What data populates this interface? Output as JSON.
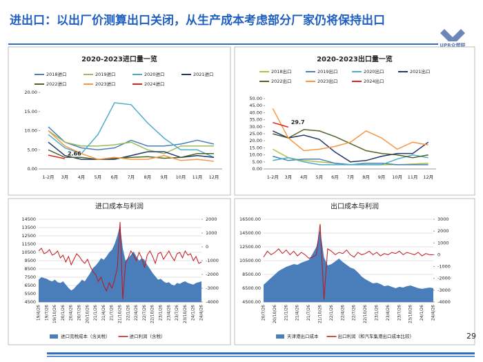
{
  "header": {
    "title": "进出口：以出厂价测算出口关闭，从生产成本考虑部分厂家仍将保持出口",
    "logo": "UPR众塑联"
  },
  "page_number": "29",
  "chart_data": [
    {
      "type": "line",
      "title": "2020-2023进口量一览",
      "categories": [
        "1-2月",
        "3月",
        "4月",
        "5月",
        "6月",
        "7月",
        "8月",
        "9月",
        "10月",
        "11月",
        "12月"
      ],
      "ylim": [
        0,
        20
      ],
      "yticks": [
        {
          "value": 0,
          "label": "0.00"
        },
        {
          "value": 5,
          "label": "5.00"
        },
        {
          "value": 10,
          "label": "10.00"
        },
        {
          "value": 15,
          "label": "15.00"
        },
        {
          "value": 20,
          "label": "20.00"
        }
      ],
      "grid": false,
      "legend": "top",
      "series": [
        {
          "name": "2018进口",
          "color": "#4a7ebb",
          "values": [
            11,
            7,
            5.5,
            5,
            5.5,
            7.5,
            6,
            6,
            6.5,
            7.5,
            6.5
          ]
        },
        {
          "name": "2019进口",
          "color": "#9bbb59",
          "values": [
            10,
            7,
            6,
            6,
            6.3,
            7,
            5,
            4,
            6,
            6,
            6
          ]
        },
        {
          "name": "2020进口",
          "color": "#4bacc6",
          "values": [
            9,
            5.5,
            4,
            9,
            17.3,
            16.8,
            12,
            8,
            5,
            5,
            3
          ]
        },
        {
          "name": "2021进口",
          "color": "#1f3864",
          "values": [
            7,
            3.5,
            2.5,
            2.5,
            2.5,
            3.5,
            4.5,
            4.5,
            3,
            3.5,
            3
          ]
        },
        {
          "name": "2022进口",
          "color": "#4f6228",
          "values": [
            5,
            3,
            3,
            2.5,
            2.8,
            3,
            3.2,
            2.8,
            3,
            4,
            4
          ]
        },
        {
          "name": "2023进口",
          "color": "#f79646",
          "values": [
            10,
            6,
            4,
            2.5,
            3,
            2.5,
            2.5,
            3.5,
            2.2,
            2.5,
            2
          ]
        },
        {
          "name": "2024进口",
          "color": "#e0201b",
          "values": [
            3.6,
            2.66,
            null,
            null,
            null,
            null,
            null,
            null,
            null,
            null,
            null
          ],
          "value_labels": [
            null,
            "2.66",
            null,
            null,
            null,
            null,
            null,
            null,
            null,
            null,
            null
          ]
        }
      ]
    },
    {
      "type": "line",
      "title": "2020-2023出口量一览",
      "categories": [
        "1-2月",
        "3月",
        "4月",
        "5月",
        "6月",
        "7月",
        "8月",
        "9月",
        "10月",
        "11月",
        "12月"
      ],
      "ylim": [
        0,
        50
      ],
      "yticks": [
        {
          "value": 0,
          "label": "0.00"
        },
        {
          "value": 5,
          "label": "5.00"
        },
        {
          "value": 10,
          "label": "10.00"
        },
        {
          "value": 15,
          "label": "15.00"
        },
        {
          "value": 20,
          "label": "20.00"
        },
        {
          "value": 25,
          "label": "25.00"
        },
        {
          "value": 30,
          "label": "30.00"
        },
        {
          "value": 35,
          "label": "35.00"
        },
        {
          "value": 40,
          "label": "40.00"
        },
        {
          "value": 45,
          "label": "45.00"
        },
        {
          "value": 50,
          "label": "50.00"
        }
      ],
      "grid": false,
      "legend": "top",
      "series": [
        {
          "name": "2018出口",
          "color": "#a9c23f",
          "values": [
            14,
            8,
            6,
            5,
            4,
            3,
            3,
            3,
            3,
            3.5,
            4
          ]
        },
        {
          "name": "2019出口",
          "color": "#4a7ebb",
          "values": [
            9,
            6,
            7,
            7,
            4,
            3,
            4,
            4,
            3,
            3,
            3
          ]
        },
        {
          "name": "2020出口",
          "color": "#4bacc6",
          "values": [
            6,
            8,
            5,
            3,
            3,
            3,
            3,
            3,
            7,
            10,
            8
          ]
        },
        {
          "name": "2021出口",
          "color": "#1f3864",
          "values": [
            27,
            22,
            24,
            21,
            12,
            5,
            6,
            9,
            11,
            11,
            19
          ]
        },
        {
          "name": "2022出口",
          "color": "#4f6228",
          "values": [
            25,
            22,
            28,
            27,
            23,
            18,
            13,
            11,
            10,
            8,
            10
          ]
        },
        {
          "name": "2023出口",
          "color": "#f79646",
          "values": [
            43,
            22,
            13,
            14,
            16,
            19,
            27,
            22,
            14,
            19,
            17
          ]
        },
        {
          "name": "2024出口",
          "color": "#e0201b",
          "values": [
            33,
            29.7,
            null,
            null,
            null,
            null,
            null,
            null,
            null,
            null,
            null
          ],
          "value_labels": [
            null,
            "29.7",
            null,
            null,
            null,
            null,
            null,
            null,
            null,
            null,
            null
          ]
        }
      ]
    },
    {
      "type": "combo",
      "title": "进口成本与利润",
      "categories": [
        "19/4/26",
        null,
        null,
        "19/7/26",
        null,
        null,
        "19/10/26",
        null,
        null,
        "20/1/26",
        null,
        null,
        "20/4/26",
        null,
        null,
        "20/7/26",
        null,
        null,
        "20/10/26",
        null,
        null,
        "21/1/26",
        null,
        null,
        "21/4/26",
        null,
        null,
        "21/7/26",
        null,
        null,
        "21/10/26",
        null,
        null,
        "22/1/26",
        null,
        null,
        "22/4/26",
        null,
        null,
        "22/7/26",
        null,
        null,
        "22/10/26",
        null,
        null,
        "23/1/26",
        null,
        null,
        "23/4/26",
        null,
        null,
        "23/7/26",
        null,
        null,
        "23/10/26",
        null,
        null,
        "24/1/26",
        null,
        null,
        "24/4/26"
      ],
      "ylim": [
        4500,
        14500
      ],
      "yticks": [
        4500,
        5500,
        6500,
        7500,
        8500,
        9500,
        10500,
        11500,
        12500,
        13500,
        14500
      ],
      "y2lim": [
        -4000,
        2000
      ],
      "y2ticks": [
        -4000,
        -3000,
        -2000,
        -1000,
        0,
        1000,
        2000
      ],
      "grid": true,
      "legend": "bottom",
      "series": [
        {
          "name": "进口完税成本（含关税）",
          "color": "#4a7ebb",
          "style": "area",
          "values": [
            7200,
            7500,
            7400,
            7300,
            7100,
            7000,
            7200,
            6900,
            6800,
            7000,
            6600,
            6200,
            5900,
            6100,
            6500,
            6800,
            7200,
            7000,
            7500,
            8000,
            8600,
            8900,
            9300,
            9800,
            9600,
            10000,
            10500,
            10800,
            11500,
            12500,
            13800,
            11000,
            9500,
            9800,
            10200,
            10600,
            10000,
            9500,
            9800,
            9600,
            9000,
            8500,
            8000,
            7600,
            7200,
            7300,
            7000,
            6800,
            6900,
            6600,
            6500,
            6800,
            6700,
            6900,
            7000,
            6800,
            6700,
            6600,
            6800,
            6900,
            7000
          ]
        },
        {
          "name": "进口利润（含税）",
          "color": "#c0141b",
          "style": "line",
          "axis": "y2",
          "values": [
            -300,
            -100,
            -500,
            -400,
            -200,
            -600,
            -500,
            -300,
            -800,
            -600,
            -1100,
            -700,
            -1300,
            -900,
            -500,
            -700,
            -1000,
            -1200,
            -900,
            -1400,
            -1800,
            -2000,
            -2500,
            -2200,
            -2800,
            -3200,
            -2600,
            -3000,
            -2400,
            -1500,
            1800,
            -3800,
            -1200,
            -800,
            -300,
            -600,
            -1000,
            -400,
            -800,
            -1500,
            -600,
            -300,
            -700,
            -1200,
            -500,
            -400,
            -900,
            -600,
            -300,
            -700,
            -1000,
            -500,
            -400,
            -800,
            -300,
            -600,
            -500,
            -1000,
            -700,
            -1200,
            -1100
          ]
        }
      ]
    },
    {
      "type": "combo",
      "title": "出口成本与利润",
      "categories": [
        "20/7/26",
        null,
        null,
        "20/10/26",
        null,
        null,
        "21/1/26",
        null,
        null,
        "21/4/26",
        null,
        null,
        "21/7/26",
        null,
        null,
        "21/10/26",
        null,
        null,
        "22/1/26",
        null,
        null,
        "22/4/26",
        null,
        null,
        "22/7/26",
        null,
        null,
        "22/10/26",
        null,
        null,
        "23/1/26",
        null,
        null,
        "23/4/26",
        null,
        null,
        "23/7/26",
        null,
        null,
        "23/10/26",
        null,
        null,
        "24/1/26",
        null,
        null,
        "24/4/26"
      ],
      "ylim": [
        4500,
        16500
      ],
      "yticks": [
        {
          "value": 4500,
          "label": "4500.00"
        },
        {
          "value": 6500,
          "label": "6500.00"
        },
        {
          "value": 8500,
          "label": "8500.00"
        },
        {
          "value": 10500,
          "label": "10500.00"
        },
        {
          "value": 12500,
          "label": "12500.00"
        },
        {
          "value": 14500,
          "label": "14500.00"
        },
        {
          "value": 16500,
          "label": "16500.00"
        }
      ],
      "y2lim": [
        -4000,
        3000
      ],
      "y2ticks": [
        -4000,
        -3000,
        -2000,
        -1000,
        0,
        1000,
        2000,
        3000
      ],
      "grid": true,
      "legend": "bottom",
      "series": [
        {
          "name": "天津港出口成本",
          "color": "#4a7ebb",
          "style": "area",
          "values": [
            7000,
            7500,
            8000,
            8500,
            9000,
            9300,
            9600,
            9800,
            10000,
            9900,
            10200,
            10400,
            10600,
            11500,
            12500,
            15000,
            11000,
            9800,
            10000,
            10400,
            10800,
            10300,
            9900,
            9500,
            9300,
            8800,
            8200,
            7800,
            7500,
            7200,
            7300,
            7100,
            6800,
            6900,
            6700,
            6500,
            6700,
            6600,
            6800,
            6900,
            6700,
            6500,
            6400,
            6500,
            6600,
            6500
          ]
        },
        {
          "name": "出口利润（和汽车集港出口成本比较）",
          "color": "#c0141b",
          "style": "line",
          "axis": "y2",
          "values": [
            -200,
            300,
            0,
            200,
            500,
            100,
            400,
            0,
            300,
            -100,
            200,
            0,
            -300,
            -200,
            0,
            2600,
            -3800,
            500,
            300,
            0,
            200,
            100,
            400,
            0,
            -200,
            200,
            0,
            100,
            300,
            0,
            200,
            -100,
            100,
            0,
            200,
            100,
            300,
            0,
            200,
            100,
            0,
            200,
            -100,
            100,
            0,
            0
          ]
        }
      ]
    }
  ]
}
